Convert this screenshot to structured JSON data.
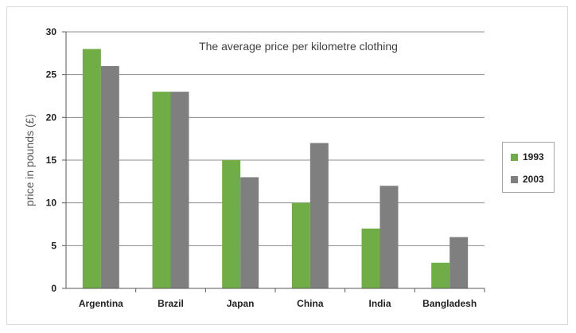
{
  "chart_data": {
    "type": "bar",
    "title": "The average price per kilometre clothing",
    "xlabel": "",
    "ylabel": "price in pounds (£)",
    "categories": [
      "Argentina",
      "Brazil",
      "Japan",
      "China",
      "India",
      "Bangladesh"
    ],
    "series": [
      {
        "name": "1993",
        "color": "#70ad47",
        "values": [
          28,
          23,
          15,
          10,
          7,
          3
        ]
      },
      {
        "name": "2003",
        "color": "#7f7f7f",
        "values": [
          26,
          23,
          13,
          17,
          12,
          6
        ]
      }
    ],
    "ylim": [
      0,
      30
    ],
    "yticks": [
      "0",
      "5",
      "10",
      "15",
      "20",
      "25",
      "30"
    ],
    "grid": true,
    "legend_position": "right"
  }
}
